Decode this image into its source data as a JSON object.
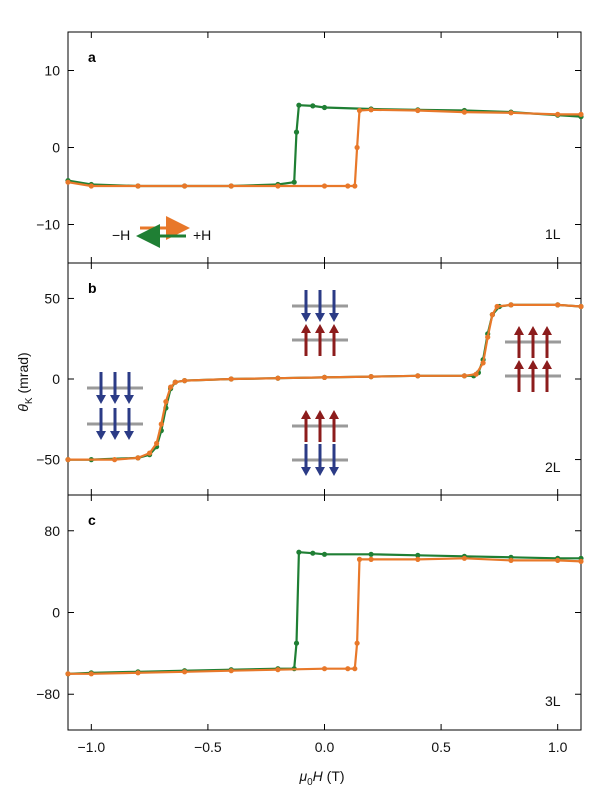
{
  "figure": {
    "xlabel_symbol": "μ",
    "xlabel_sub": "0",
    "xlabel_var": "H",
    "xlabel_unit": " (T)",
    "ylabel_symbol": "θ",
    "ylabel_sub": "K",
    "ylabel_unit": " (mrad)",
    "legend": {
      "left": "−H",
      "right": "+H"
    },
    "colors": {
      "sweep_up": "#e8782a",
      "sweep_down": "#1f7f34",
      "spin_down": "#2b3b86",
      "spin_up": "#8c1c1c",
      "layer_bar": "#9a9a9a"
    },
    "x_ticks": [
      "−1.0",
      "−0.5",
      "0.0",
      "0.5",
      "1.0"
    ]
  },
  "chart_data": [
    {
      "type": "line",
      "panel": "a",
      "annotation": "1L",
      "xlim": [
        -1.1,
        1.1
      ],
      "ylim": [
        -15,
        15
      ],
      "y_ticks": [
        10,
        0,
        -10
      ],
      "y_tick_labels": [
        "10",
        "0",
        "−10"
      ],
      "series": [
        {
          "name": "+H",
          "color": "#e8782a",
          "x": [
            -1.1,
            -1.0,
            -0.8,
            -0.6,
            -0.4,
            -0.2,
            0.0,
            0.1,
            0.13,
            0.14,
            0.15,
            0.2,
            0.4,
            0.6,
            0.8,
            1.0,
            1.1
          ],
          "y": [
            -4.5,
            -5.0,
            -5.0,
            -5.0,
            -5.0,
            -5.0,
            -5.0,
            -5.0,
            -5.0,
            0.0,
            4.8,
            4.9,
            4.8,
            4.6,
            4.5,
            4.3,
            4.3
          ]
        },
        {
          "name": "−H",
          "color": "#1f7f34",
          "x": [
            1.1,
            1.0,
            0.8,
            0.6,
            0.4,
            0.2,
            0.0,
            -0.05,
            -0.11,
            -0.12,
            -0.13,
            -0.2,
            -0.4,
            -0.6,
            -0.8,
            -1.0,
            -1.1
          ],
          "y": [
            4.0,
            4.2,
            4.6,
            4.8,
            4.9,
            5.0,
            5.2,
            5.4,
            5.5,
            2.0,
            -4.5,
            -4.8,
            -5.0,
            -5.0,
            -5.0,
            -4.8,
            -4.3
          ]
        }
      ]
    },
    {
      "type": "line",
      "panel": "b",
      "annotation": "2L",
      "xlim": [
        -1.1,
        1.1
      ],
      "ylim": [
        -72,
        72
      ],
      "y_ticks": [
        50,
        0,
        -50
      ],
      "y_tick_labels": [
        "50",
        "0",
        "−50"
      ],
      "series": [
        {
          "name": "+H",
          "color": "#e8782a",
          "x": [
            -1.1,
            -0.9,
            -0.8,
            -0.75,
            -0.72,
            -0.7,
            -0.68,
            -0.66,
            -0.64,
            -0.6,
            -0.4,
            -0.2,
            0.0,
            0.2,
            0.4,
            0.6,
            0.65,
            0.68,
            0.7,
            0.72,
            0.74,
            0.8,
            1.0,
            1.1
          ],
          "y": [
            -50,
            -50,
            -49,
            -46,
            -40,
            -28,
            -14,
            -5,
            -2,
            -1,
            0,
            0.5,
            1,
            1.5,
            2,
            2,
            3,
            10,
            26,
            40,
            45,
            46,
            46,
            45
          ]
        },
        {
          "name": "−H",
          "color": "#1f7f34",
          "x": [
            1.1,
            1.0,
            0.8,
            0.75,
            0.72,
            0.7,
            0.68,
            0.66,
            0.64,
            0.6,
            0.4,
            0.2,
            0.0,
            -0.2,
            -0.4,
            -0.6,
            -0.64,
            -0.66,
            -0.68,
            -0.7,
            -0.72,
            -0.75,
            -0.8,
            -1.0,
            -1.1
          ],
          "y": [
            45,
            46,
            46,
            45,
            40,
            28,
            12,
            4,
            2,
            2,
            2,
            1.5,
            1,
            0.5,
            0,
            -1,
            -2,
            -6,
            -18,
            -32,
            -42,
            -47,
            -49,
            -50,
            -50
          ]
        }
      ]
    },
    {
      "type": "line",
      "panel": "c",
      "annotation": "3L",
      "xlim": [
        -1.1,
        1.1
      ],
      "ylim": [
        -115,
        115
      ],
      "y_ticks": [
        80,
        0,
        -80
      ],
      "y_tick_labels": [
        "80",
        "0",
        "−80"
      ],
      "series": [
        {
          "name": "+H",
          "color": "#e8782a",
          "x": [
            -1.1,
            -1.0,
            -0.8,
            -0.6,
            -0.4,
            -0.2,
            0.0,
            0.1,
            0.13,
            0.14,
            0.15,
            0.2,
            0.4,
            0.6,
            0.8,
            1.0,
            1.1
          ],
          "y": [
            -60,
            -60,
            -59,
            -58,
            -57,
            -56,
            -55,
            -55,
            -55,
            -30,
            52,
            52,
            52,
            53,
            51,
            51,
            50
          ]
        },
        {
          "name": "−H",
          "color": "#1f7f34",
          "x": [
            1.1,
            1.0,
            0.8,
            0.6,
            0.4,
            0.2,
            0.0,
            -0.05,
            -0.11,
            -0.12,
            -0.13,
            -0.2,
            -0.4,
            -0.6,
            -0.8,
            -1.0,
            -1.1
          ],
          "y": [
            53,
            53,
            54,
            55,
            56,
            57,
            57,
            58,
            59,
            -30,
            -55,
            -55,
            -56,
            -57,
            -58,
            -59,
            -60
          ]
        }
      ]
    }
  ]
}
